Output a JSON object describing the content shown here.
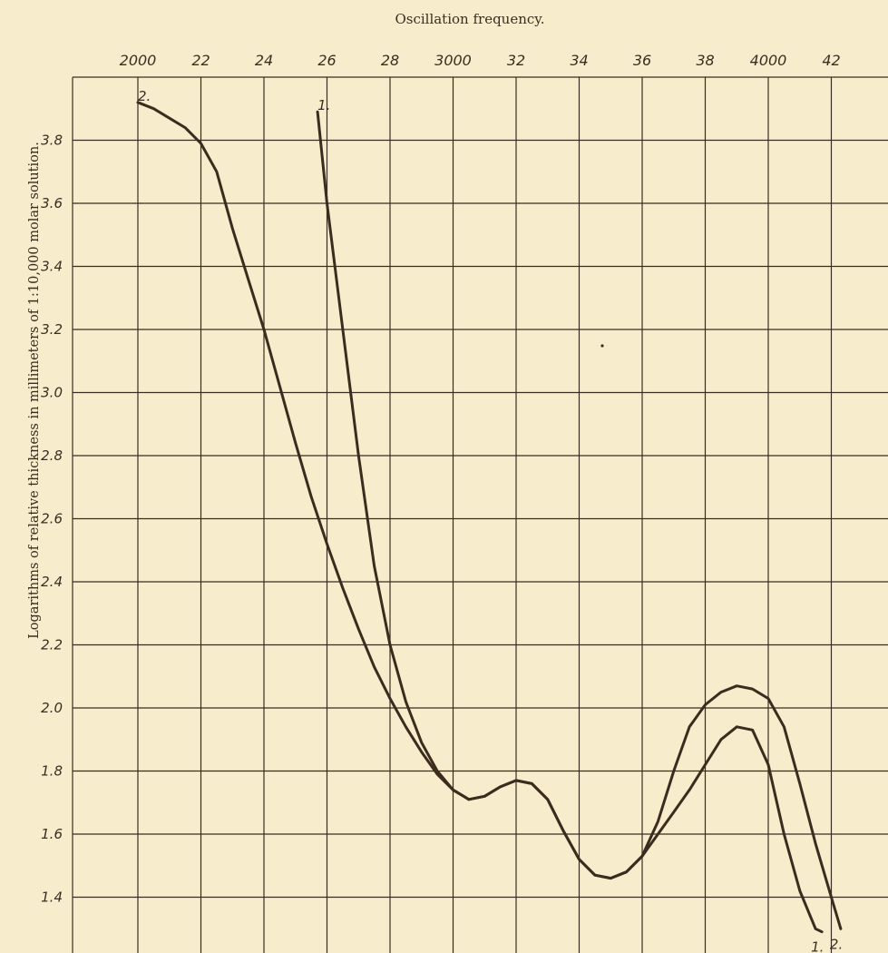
{
  "chart_data": {
    "type": "line",
    "title": "Oscillation frequency.",
    "ylabel": "Logarithms of relative thickness in millimeters of 1:10,000 molar solution.",
    "xlabel": "",
    "x_ticks": [
      {
        "value": 2000,
        "label": "2000"
      },
      {
        "value": 2200,
        "label": "22"
      },
      {
        "value": 2400,
        "label": "24"
      },
      {
        "value": 2600,
        "label": "26"
      },
      {
        "value": 2800,
        "label": "28"
      },
      {
        "value": 3000,
        "label": "3000"
      },
      {
        "value": 3200,
        "label": "32"
      },
      {
        "value": 3400,
        "label": "34"
      },
      {
        "value": 3600,
        "label": "36"
      },
      {
        "value": 3800,
        "label": "38"
      },
      {
        "value": 4000,
        "label": "4000"
      },
      {
        "value": 4200,
        "label": "42"
      }
    ],
    "y_ticks": [
      {
        "value": 3.8,
        "label": "3.8"
      },
      {
        "value": 3.6,
        "label": "3.6"
      },
      {
        "value": 3.4,
        "label": "3.4"
      },
      {
        "value": 3.2,
        "label": "3.2"
      },
      {
        "value": 3.0,
        "label": "3.0"
      },
      {
        "value": 2.8,
        "label": "2.8"
      },
      {
        "value": 2.6,
        "label": "2.6"
      },
      {
        "value": 2.4,
        "label": "2.4"
      },
      {
        "value": 2.2,
        "label": "2.2"
      },
      {
        "value": 2.0,
        "label": "2.0"
      },
      {
        "value": 1.8,
        "label": "1.8"
      },
      {
        "value": 1.6,
        "label": "1.6"
      },
      {
        "value": 1.4,
        "label": "1.4"
      }
    ],
    "xlim": [
      1800,
      4300
    ],
    "ylim": [
      1.24,
      3.96
    ],
    "grid": true,
    "series": [
      {
        "name": "1.",
        "label_start": "1.",
        "label_end": "1.",
        "x": [
          2570,
          2600,
          2650,
          2700,
          2750,
          2800,
          2850,
          2900,
          2950,
          3000,
          3050,
          3100,
          3150,
          3200,
          3250,
          3300,
          3350,
          3400,
          3450,
          3500,
          3550,
          3600,
          3650,
          3700,
          3750,
          3800,
          3850,
          3900,
          3950,
          4000,
          4050,
          4100,
          4150,
          4170
        ],
        "y": [
          3.89,
          3.6,
          3.2,
          2.8,
          2.45,
          2.2,
          2.02,
          1.89,
          1.8,
          1.74,
          1.71,
          1.72,
          1.75,
          1.77,
          1.76,
          1.71,
          1.61,
          1.52,
          1.47,
          1.46,
          1.48,
          1.53,
          1.6,
          1.67,
          1.74,
          1.82,
          1.9,
          1.94,
          1.93,
          1.82,
          1.6,
          1.42,
          1.3,
          1.29
        ]
      },
      {
        "name": "2.",
        "label_start": "2.",
        "label_end": "2.",
        "x": [
          2000,
          2050,
          2100,
          2150,
          2200,
          2250,
          2300,
          2350,
          2400,
          2450,
          2500,
          2550,
          2600,
          2650,
          2700,
          2750,
          2800,
          2850,
          2900,
          2950,
          3000,
          3050,
          3100,
          3150,
          3200,
          3250,
          3300,
          3350,
          3400,
          3450,
          3500,
          3550,
          3600,
          3650,
          3700,
          3750,
          3800,
          3850,
          3900,
          3950,
          4000,
          4050,
          4100,
          4150,
          4200,
          4230
        ],
        "y": [
          3.92,
          3.9,
          3.87,
          3.84,
          3.79,
          3.7,
          3.52,
          3.36,
          3.2,
          3.02,
          2.84,
          2.67,
          2.52,
          2.38,
          2.25,
          2.13,
          2.03,
          1.94,
          1.86,
          1.79,
          1.74,
          1.71,
          1.72,
          1.75,
          1.77,
          1.76,
          1.71,
          1.61,
          1.52,
          1.47,
          1.46,
          1.48,
          1.53,
          1.64,
          1.8,
          1.94,
          2.01,
          2.05,
          2.07,
          2.06,
          2.03,
          1.94,
          1.76,
          1.57,
          1.4,
          1.3
        ]
      }
    ]
  }
}
